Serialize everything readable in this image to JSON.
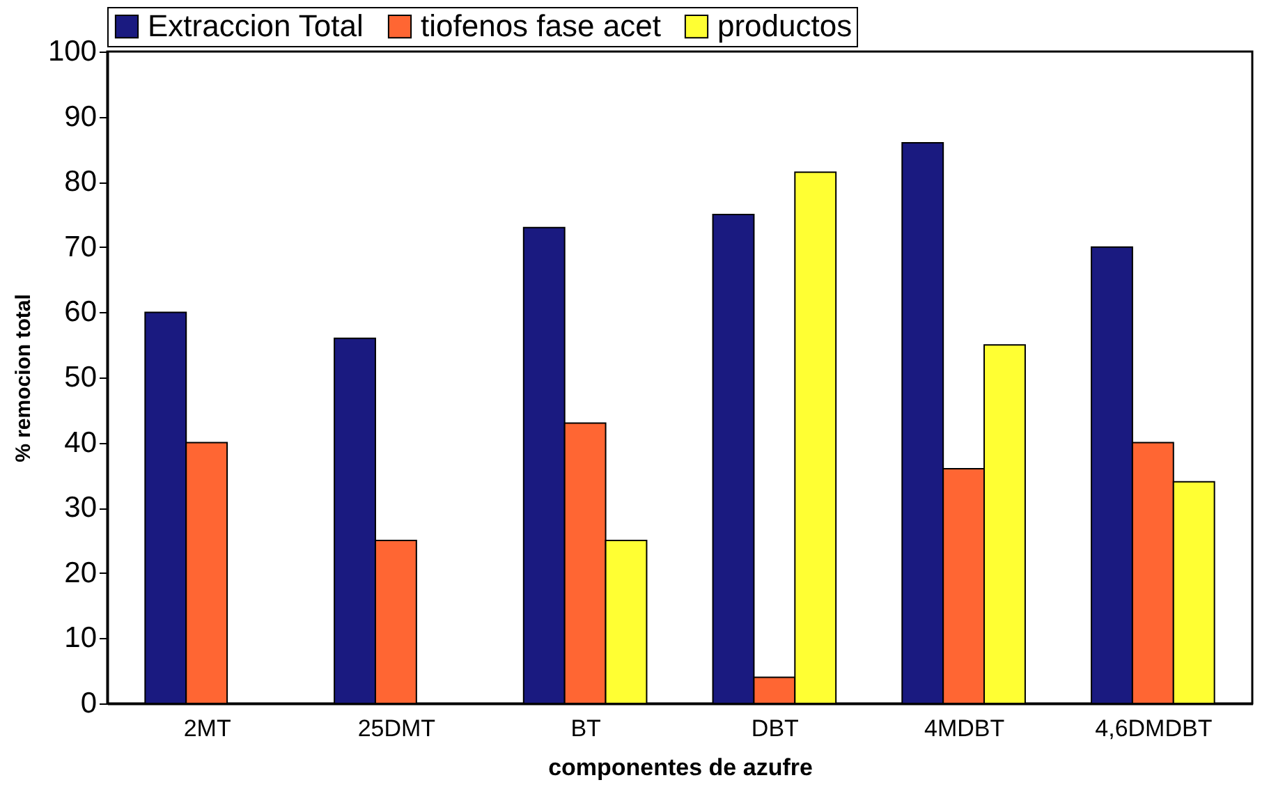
{
  "chart_data": {
    "type": "bar",
    "xlabel": "componentes de azufre",
    "ylabel": "% remocion total",
    "categories": [
      "2MT",
      "25DMT",
      "BT",
      "DBT",
      "4MDBT",
      "4,6DMDBT"
    ],
    "series": [
      {
        "name": "Extraccion Total",
        "color": "#1a1a80",
        "values": [
          60,
          56,
          73,
          75,
          86,
          70
        ]
      },
      {
        "name": "tiofenos fase acet",
        "color": "#ff6633",
        "values": [
          40,
          25,
          43,
          4,
          36,
          40
        ]
      },
      {
        "name": "productos",
        "color": "#ffff33",
        "values": [
          null,
          null,
          25,
          81.5,
          55,
          34
        ]
      }
    ],
    "ylim": [
      0,
      100
    ],
    "yticks": [
      0,
      10,
      20,
      30,
      40,
      50,
      60,
      70,
      80,
      90,
      100
    ],
    "grid": false,
    "legend": "top"
  }
}
